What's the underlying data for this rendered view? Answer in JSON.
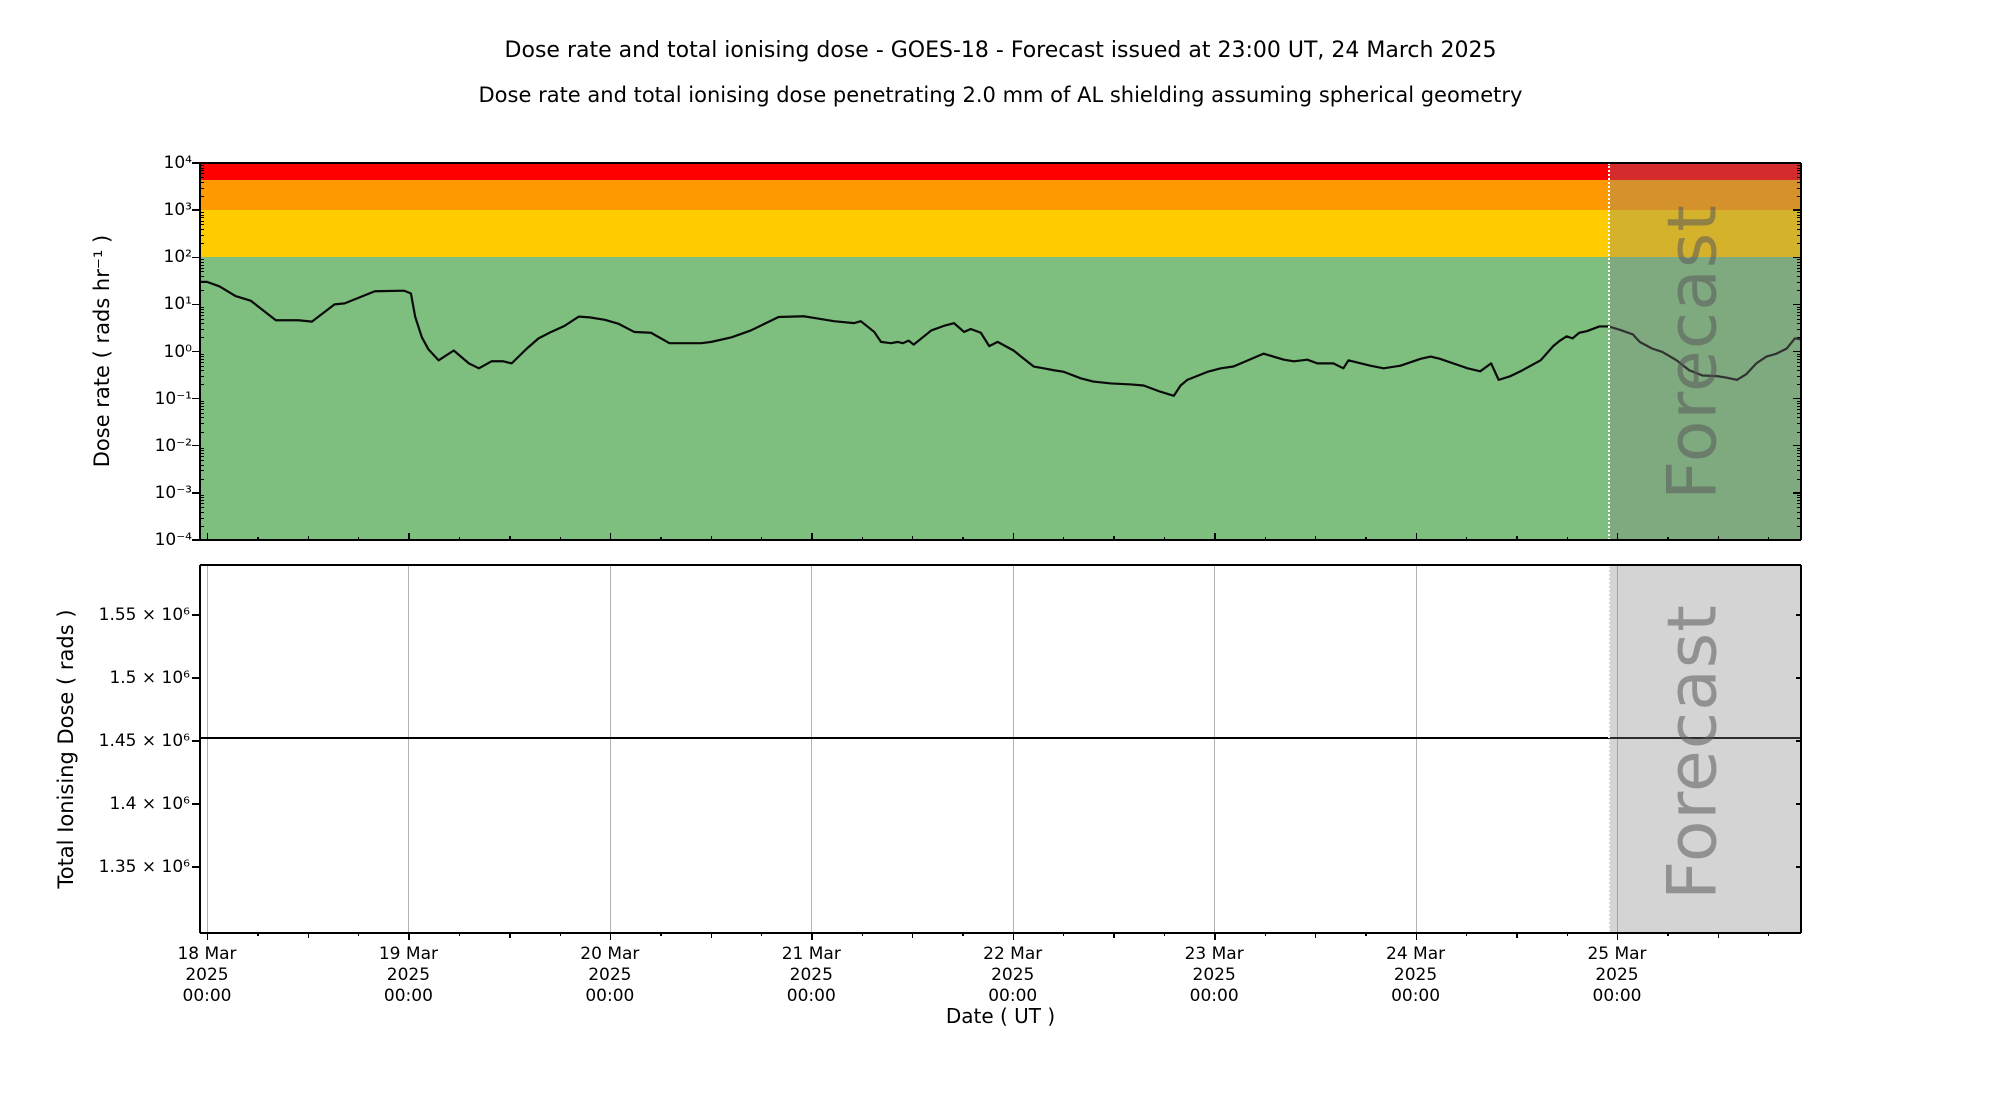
{
  "titles": {
    "main": "Dose rate and total ionising dose - GOES-18 - Forecast issued at 23:00 UT, 24 March 2025",
    "sub": "Dose rate and total ionising dose penetrating 2.0 mm of AL shielding assuming spherical geometry"
  },
  "forecast": {
    "label": "Forecast",
    "start_hours_after_18mar": 167
  },
  "xaxis": {
    "label": "Date ( UT )",
    "ticks": [
      {
        "date": "18 Mar",
        "year": "2025",
        "time": "00:00"
      },
      {
        "date": "19 Mar",
        "year": "2025",
        "time": "00:00"
      },
      {
        "date": "20 Mar",
        "year": "2025",
        "time": "00:00"
      },
      {
        "date": "21 Mar",
        "year": "2025",
        "time": "00:00"
      },
      {
        "date": "22 Mar",
        "year": "2025",
        "time": "00:00"
      },
      {
        "date": "23 Mar",
        "year": "2025",
        "time": "00:00"
      },
      {
        "date": "24 Mar",
        "year": "2025",
        "time": "00:00"
      },
      {
        "date": "25 Mar",
        "year": "2025",
        "time": "00:00"
      }
    ]
  },
  "top_panel": {
    "ylabel": "Dose rate ( rads hr⁻¹ )",
    "ytick_labels": [
      "10⁴",
      "10³",
      "10²",
      "10¹",
      "10⁰",
      "10⁻¹",
      "10⁻²",
      "10⁻³",
      "10⁻⁴"
    ],
    "ytick_exponents": [
      4,
      3,
      2,
      1,
      0,
      -1,
      -2,
      -3,
      -4
    ]
  },
  "bottom_panel": {
    "ylabel": "Total Ionising Dose ( rads )",
    "ytick_labels": [
      "1.55 × 10⁶",
      "1.5 × 10⁶",
      "1.45 × 10⁶",
      "1.4 × 10⁶",
      "1.35 × 10⁶"
    ],
    "ytick_values": [
      1550000,
      1500000,
      1450000,
      1400000,
      1350000
    ]
  },
  "colors": {
    "band_red": "#ff0000",
    "band_orange": "#ff9900",
    "band_yellow": "#ffcc00",
    "band_green": "#7ebe7e",
    "line": "#0a0a0a",
    "gridline": "#b3b3b3",
    "forecast_overlay": "rgba(128,128,128,0.34)"
  },
  "chart_data": [
    {
      "type": "line",
      "title": "Dose rate and total ionising dose - GOES-18 - Forecast issued at 23:00 UT, 24 March 2025",
      "subtitle": "Dose rate and total ionising dose penetrating 2.0 mm of AL shielding assuming spherical geometry",
      "ylabel": "Dose rate ( rads hr⁻¹ )",
      "xlabel": "Date ( UT )",
      "yscale": "log",
      "ylim": [
        0.0001,
        10000
      ],
      "x_unit": "hours since 18 Mar 2025 00:00 UT",
      "xlim_hours": [
        0,
        190
      ],
      "x_day_tick_hours": [
        0,
        24,
        48,
        72,
        96,
        120,
        144,
        168
      ],
      "forecast_region_hours": [
        167,
        190
      ],
      "grid": false,
      "bands": [
        {
          "name": "red",
          "from_rads_hr": 4400,
          "to_rads_hr": 10000,
          "color": "#ff0000"
        },
        {
          "name": "orange",
          "from_rads_hr": 1000,
          "to_rads_hr": 4400,
          "color": "#ff9900"
        },
        {
          "name": "yellow",
          "from_rads_hr": 100,
          "to_rads_hr": 1000,
          "color": "#ffcc00"
        },
        {
          "name": "green",
          "from_rads_hr": 0.0001,
          "to_rads_hr": 100,
          "color": "#7ebe7e"
        }
      ],
      "series": [
        {
          "name": "dose_rate_rads_hr",
          "points": [
            [
              0,
              30
            ],
            [
              1.5,
              24
            ],
            [
              3.4,
              15
            ],
            [
              5.2,
              12
            ],
            [
              8.2,
              4.6
            ],
            [
              10.9,
              4.6
            ],
            [
              12.5,
              4.3
            ],
            [
              15.2,
              10
            ],
            [
              16.4,
              10.5
            ],
            [
              20,
              19
            ],
            [
              23.5,
              19.5
            ],
            [
              24.3,
              17
            ],
            [
              24.8,
              5.5
            ],
            [
              25.6,
              2.0
            ],
            [
              26.4,
              1.1
            ],
            [
              27.6,
              0.65
            ],
            [
              29.4,
              1.05
            ],
            [
              31.2,
              0.56
            ],
            [
              32.4,
              0.44
            ],
            [
              33.9,
              0.62
            ],
            [
              35.3,
              0.62
            ],
            [
              36.3,
              0.56
            ],
            [
              38.1,
              1.15
            ],
            [
              39.5,
              1.9
            ],
            [
              41,
              2.6
            ],
            [
              42.6,
              3.5
            ],
            [
              44.3,
              5.5
            ],
            [
              45.6,
              5.3
            ],
            [
              47.4,
              4.7
            ],
            [
              49,
              3.9
            ],
            [
              50.9,
              2.6
            ],
            [
              52.9,
              2.5
            ],
            [
              55.1,
              1.5
            ],
            [
              58.9,
              1.5
            ],
            [
              60.1,
              1.6
            ],
            [
              62.5,
              2.0
            ],
            [
              64.8,
              2.8
            ],
            [
              68.1,
              5.4
            ],
            [
              71.1,
              5.6
            ],
            [
              72.8,
              5.0
            ],
            [
              74.7,
              4.4
            ],
            [
              77.1,
              4.0
            ],
            [
              77.9,
              4.4
            ],
            [
              79.5,
              2.6
            ],
            [
              80.3,
              1.6
            ],
            [
              81.5,
              1.5
            ],
            [
              82.3,
              1.6
            ],
            [
              82.9,
              1.5
            ],
            [
              83.6,
              1.7
            ],
            [
              84.2,
              1.4
            ],
            [
              86.3,
              2.8
            ],
            [
              87.8,
              3.5
            ],
            [
              89,
              4.0
            ],
            [
              90.2,
              2.6
            ],
            [
              91,
              3.0
            ],
            [
              92.2,
              2.5
            ],
            [
              93.2,
              1.3
            ],
            [
              94.2,
              1.6
            ],
            [
              96.1,
              1.05
            ],
            [
              97,
              0.78
            ],
            [
              98.5,
              0.48
            ],
            [
              99.7,
              0.44
            ],
            [
              100.9,
              0.4
            ],
            [
              102.1,
              0.37
            ],
            [
              104.1,
              0.27
            ],
            [
              105.6,
              0.23
            ],
            [
              107.7,
              0.21
            ],
            [
              110.1,
              0.2
            ],
            [
              111.6,
              0.19
            ],
            [
              113.6,
              0.14
            ],
            [
              115.2,
              0.115
            ],
            [
              116,
              0.19
            ],
            [
              116.8,
              0.25
            ],
            [
              119.2,
              0.37
            ],
            [
              120.8,
              0.44
            ],
            [
              122.3,
              0.48
            ],
            [
              125.9,
              0.9
            ],
            [
              128.3,
              0.67
            ],
            [
              129.5,
              0.62
            ],
            [
              131.1,
              0.67
            ],
            [
              132.3,
              0.56
            ],
            [
              134.2,
              0.56
            ],
            [
              135.4,
              0.44
            ],
            [
              136,
              0.65
            ],
            [
              138.6,
              0.5
            ],
            [
              140.2,
              0.44
            ],
            [
              142.2,
              0.5
            ],
            [
              144.6,
              0.7
            ],
            [
              145.8,
              0.78
            ],
            [
              146.9,
              0.7
            ],
            [
              149,
              0.52
            ],
            [
              150.2,
              0.44
            ],
            [
              151.7,
              0.38
            ],
            [
              153,
              0.56
            ],
            [
              153.9,
              0.25
            ],
            [
              155.3,
              0.3
            ],
            [
              156.5,
              0.38
            ],
            [
              158.9,
              0.65
            ],
            [
              160.4,
              1.3
            ],
            [
              161.2,
              1.7
            ],
            [
              162,
              2.1
            ],
            [
              162.7,
              1.9
            ],
            [
              163.5,
              2.5
            ],
            [
              164.4,
              2.7
            ],
            [
              165.9,
              3.4
            ],
            [
              167,
              3.4
            ],
            [
              168.3,
              2.9
            ],
            [
              169.9,
              2.3
            ],
            [
              170.7,
              1.6
            ],
            [
              172.2,
              1.15
            ],
            [
              173.4,
              0.98
            ],
            [
              175.1,
              0.65
            ],
            [
              176.6,
              0.4
            ],
            [
              178.2,
              0.31
            ],
            [
              179.9,
              0.3
            ],
            [
              181,
              0.28
            ],
            [
              182.3,
              0.25
            ],
            [
              183.4,
              0.33
            ],
            [
              184.6,
              0.56
            ],
            [
              185.8,
              0.78
            ],
            [
              187,
              0.9
            ],
            [
              188.2,
              1.15
            ],
            [
              189.2,
              1.9
            ],
            [
              190,
              1.8
            ]
          ]
        }
      ]
    },
    {
      "type": "line",
      "ylabel": "Total Ionising Dose ( rads )",
      "xlabel": "Date ( UT )",
      "yscale": "linear",
      "ylim": [
        1298000,
        1590000
      ],
      "ytick_values": [
        1350000,
        1400000,
        1450000,
        1500000,
        1550000
      ],
      "x_unit": "hours since 18 Mar 2025 00:00 UT",
      "xlim_hours": [
        0,
        190
      ],
      "forecast_region_hours": [
        167,
        190
      ],
      "grid": "vertical-daily",
      "series": [
        {
          "name": "total_ionising_dose_rads",
          "points": [
            [
              0,
              1452000
            ],
            [
              190,
              1452000
            ]
          ]
        }
      ]
    }
  ]
}
